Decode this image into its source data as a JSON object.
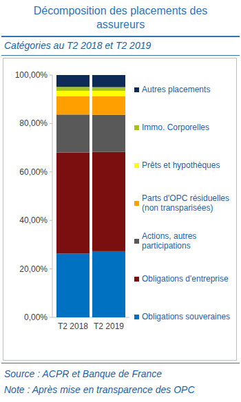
{
  "chart_data": {
    "type": "bar",
    "title": "Décomposition des placements des assureurs",
    "subtitle": "Catégories au T2 2018 et T2 2019",
    "categories": [
      "T2 2018",
      "T2 2019"
    ],
    "stacked": true,
    "legend": "right",
    "grid": false,
    "ylim": [
      0,
      100
    ],
    "yticks": [
      {
        "value": 0,
        "label": "0,00%"
      },
      {
        "value": 20,
        "label": "20,00%"
      },
      {
        "value": 40,
        "label": "40,00%"
      },
      {
        "value": 60,
        "label": "60,00%"
      },
      {
        "value": 80,
        "label": "80,00%"
      },
      {
        "value": 100,
        "label": "100,00%"
      }
    ],
    "series": [
      {
        "name": "Obligations souveraines",
        "color": "#0070c0",
        "values": [
          26.3,
          27.3
        ]
      },
      {
        "name": "Obligations d'entreprise",
        "color": "#7b0f0f",
        "values": [
          41.7,
          41.0
        ]
      },
      {
        "name": "Actions, autres participations",
        "color": "#595959",
        "values": [
          15.7,
          15.3
        ]
      },
      {
        "name": "Parts d'OPC résiduelles (non transparisées)",
        "color": "#ffa000",
        "values": [
          7.5,
          7.7
        ]
      },
      {
        "name": "Prêts et hypothèques",
        "color": "#ffff00",
        "values": [
          2.3,
          2.2
        ]
      },
      {
        "name": "Immo. Corporelles",
        "color": "#a3c21f",
        "values": [
          1.6,
          1.5
        ]
      },
      {
        "name": "Autres placements",
        "color": "#0e2a56",
        "values": [
          4.9,
          5.0
        ]
      }
    ],
    "source": "Source : ACPR et Banque de France",
    "note": "Note : Après mise en transparence des OPC"
  }
}
